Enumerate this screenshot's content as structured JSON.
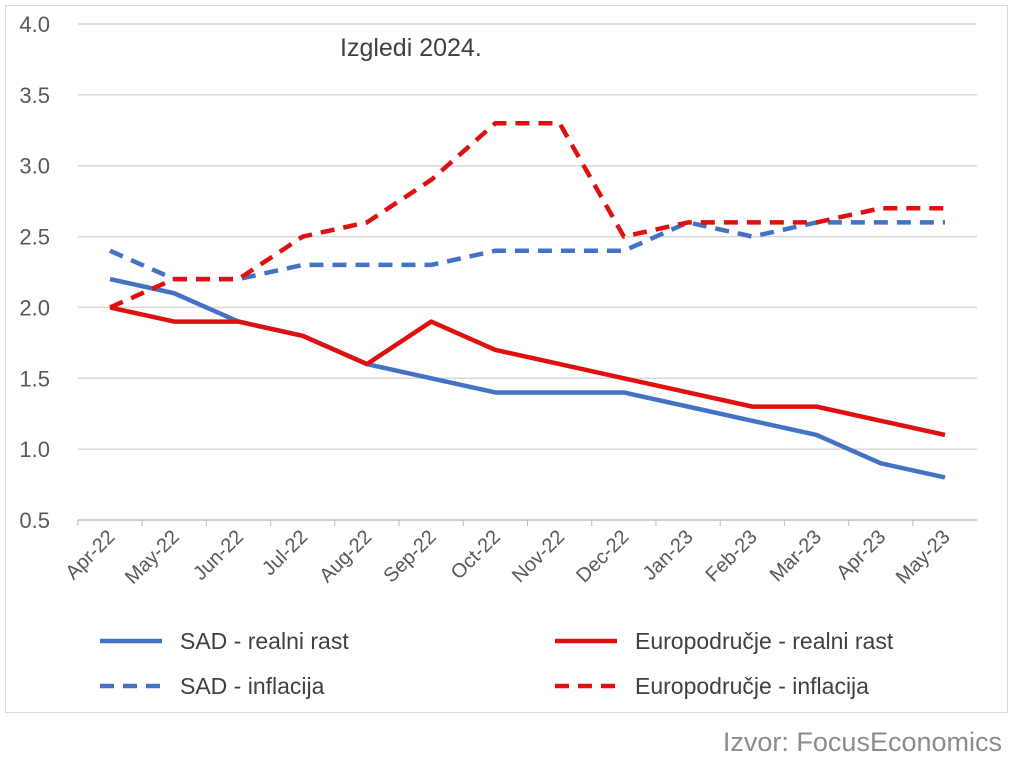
{
  "chart_data": {
    "type": "line",
    "title": "Izgledi 2024.",
    "xlabel": "",
    "ylabel": "",
    "ylim": [
      0.5,
      4.0
    ],
    "yticks": [
      "0.5",
      "1.0",
      "1.5",
      "2.0",
      "2.5",
      "3.0",
      "3.5",
      "4.0"
    ],
    "grid": true,
    "legend_position": "bottom",
    "categories": [
      "Apr-22",
      "May-22",
      "Jun-22",
      "Jul-22",
      "Aug-22",
      "Sep-22",
      "Oct-22",
      "Nov-22",
      "Dec-22",
      "Jan-23",
      "Feb-23",
      "Mar-23",
      "Apr-23",
      "May-23"
    ],
    "series": [
      {
        "name": "SAD - realni rast",
        "color": "#4472c4",
        "dashed": false,
        "values": [
          2.2,
          2.1,
          1.9,
          1.8,
          1.6,
          1.5,
          1.4,
          1.4,
          1.4,
          1.3,
          1.2,
          1.1,
          0.9,
          0.8
        ]
      },
      {
        "name": "SAD - inflacija",
        "color": "#4472c4",
        "dashed": true,
        "values": [
          2.4,
          2.2,
          2.2,
          2.3,
          2.3,
          2.3,
          2.4,
          2.4,
          2.4,
          2.6,
          2.5,
          2.6,
          2.6,
          2.6
        ]
      },
      {
        "name": "Europodručje - realni rast",
        "color": "#e01010",
        "dashed": false,
        "values": [
          2.0,
          1.9,
          1.9,
          1.8,
          1.6,
          1.9,
          1.7,
          1.6,
          1.5,
          1.4,
          1.3,
          1.3,
          1.2,
          1.1
        ]
      },
      {
        "name": "Europodručje - inflacija",
        "color": "#e01010",
        "dashed": true,
        "values": [
          2.0,
          2.2,
          2.2,
          2.5,
          2.6,
          2.9,
          3.3,
          3.3,
          2.5,
          2.6,
          2.6,
          2.6,
          2.7,
          2.7
        ]
      }
    ]
  },
  "source": "Izvor: FocusEconomics"
}
